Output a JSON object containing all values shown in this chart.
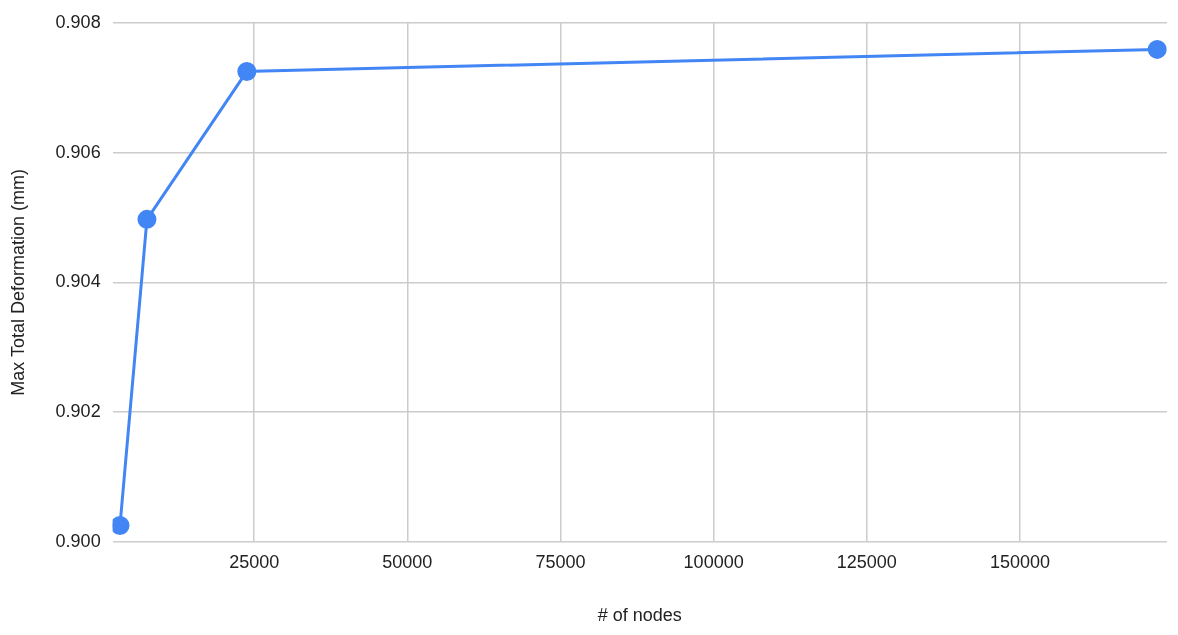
{
  "chart_data": {
    "type": "line",
    "xlabel": "# of nodes",
    "ylabel": "Max Total Deformation (mm)",
    "x": [
      3100,
      7500,
      23800,
      172400
    ],
    "series": [
      {
        "color": "#4285f4",
        "values": [
          0.90025,
          0.90497,
          0.90725,
          0.90759
        ]
      }
    ],
    "xlim": [
      1900,
      174000
    ],
    "xticks": [
      25000,
      50000,
      75000,
      100000,
      125000,
      150000
    ],
    "ylim": [
      0.9,
      0.908
    ],
    "yticks": [
      {
        "value": 0.9,
        "label": "0.900"
      },
      {
        "value": 0.902,
        "label": "0.902"
      },
      {
        "value": 0.904,
        "label": "0.904"
      },
      {
        "value": 0.906,
        "label": "0.906"
      },
      {
        "value": 0.908,
        "label": "0.908"
      }
    ],
    "grid": true,
    "legend": false,
    "marker": "circle",
    "line_style": "solid"
  }
}
